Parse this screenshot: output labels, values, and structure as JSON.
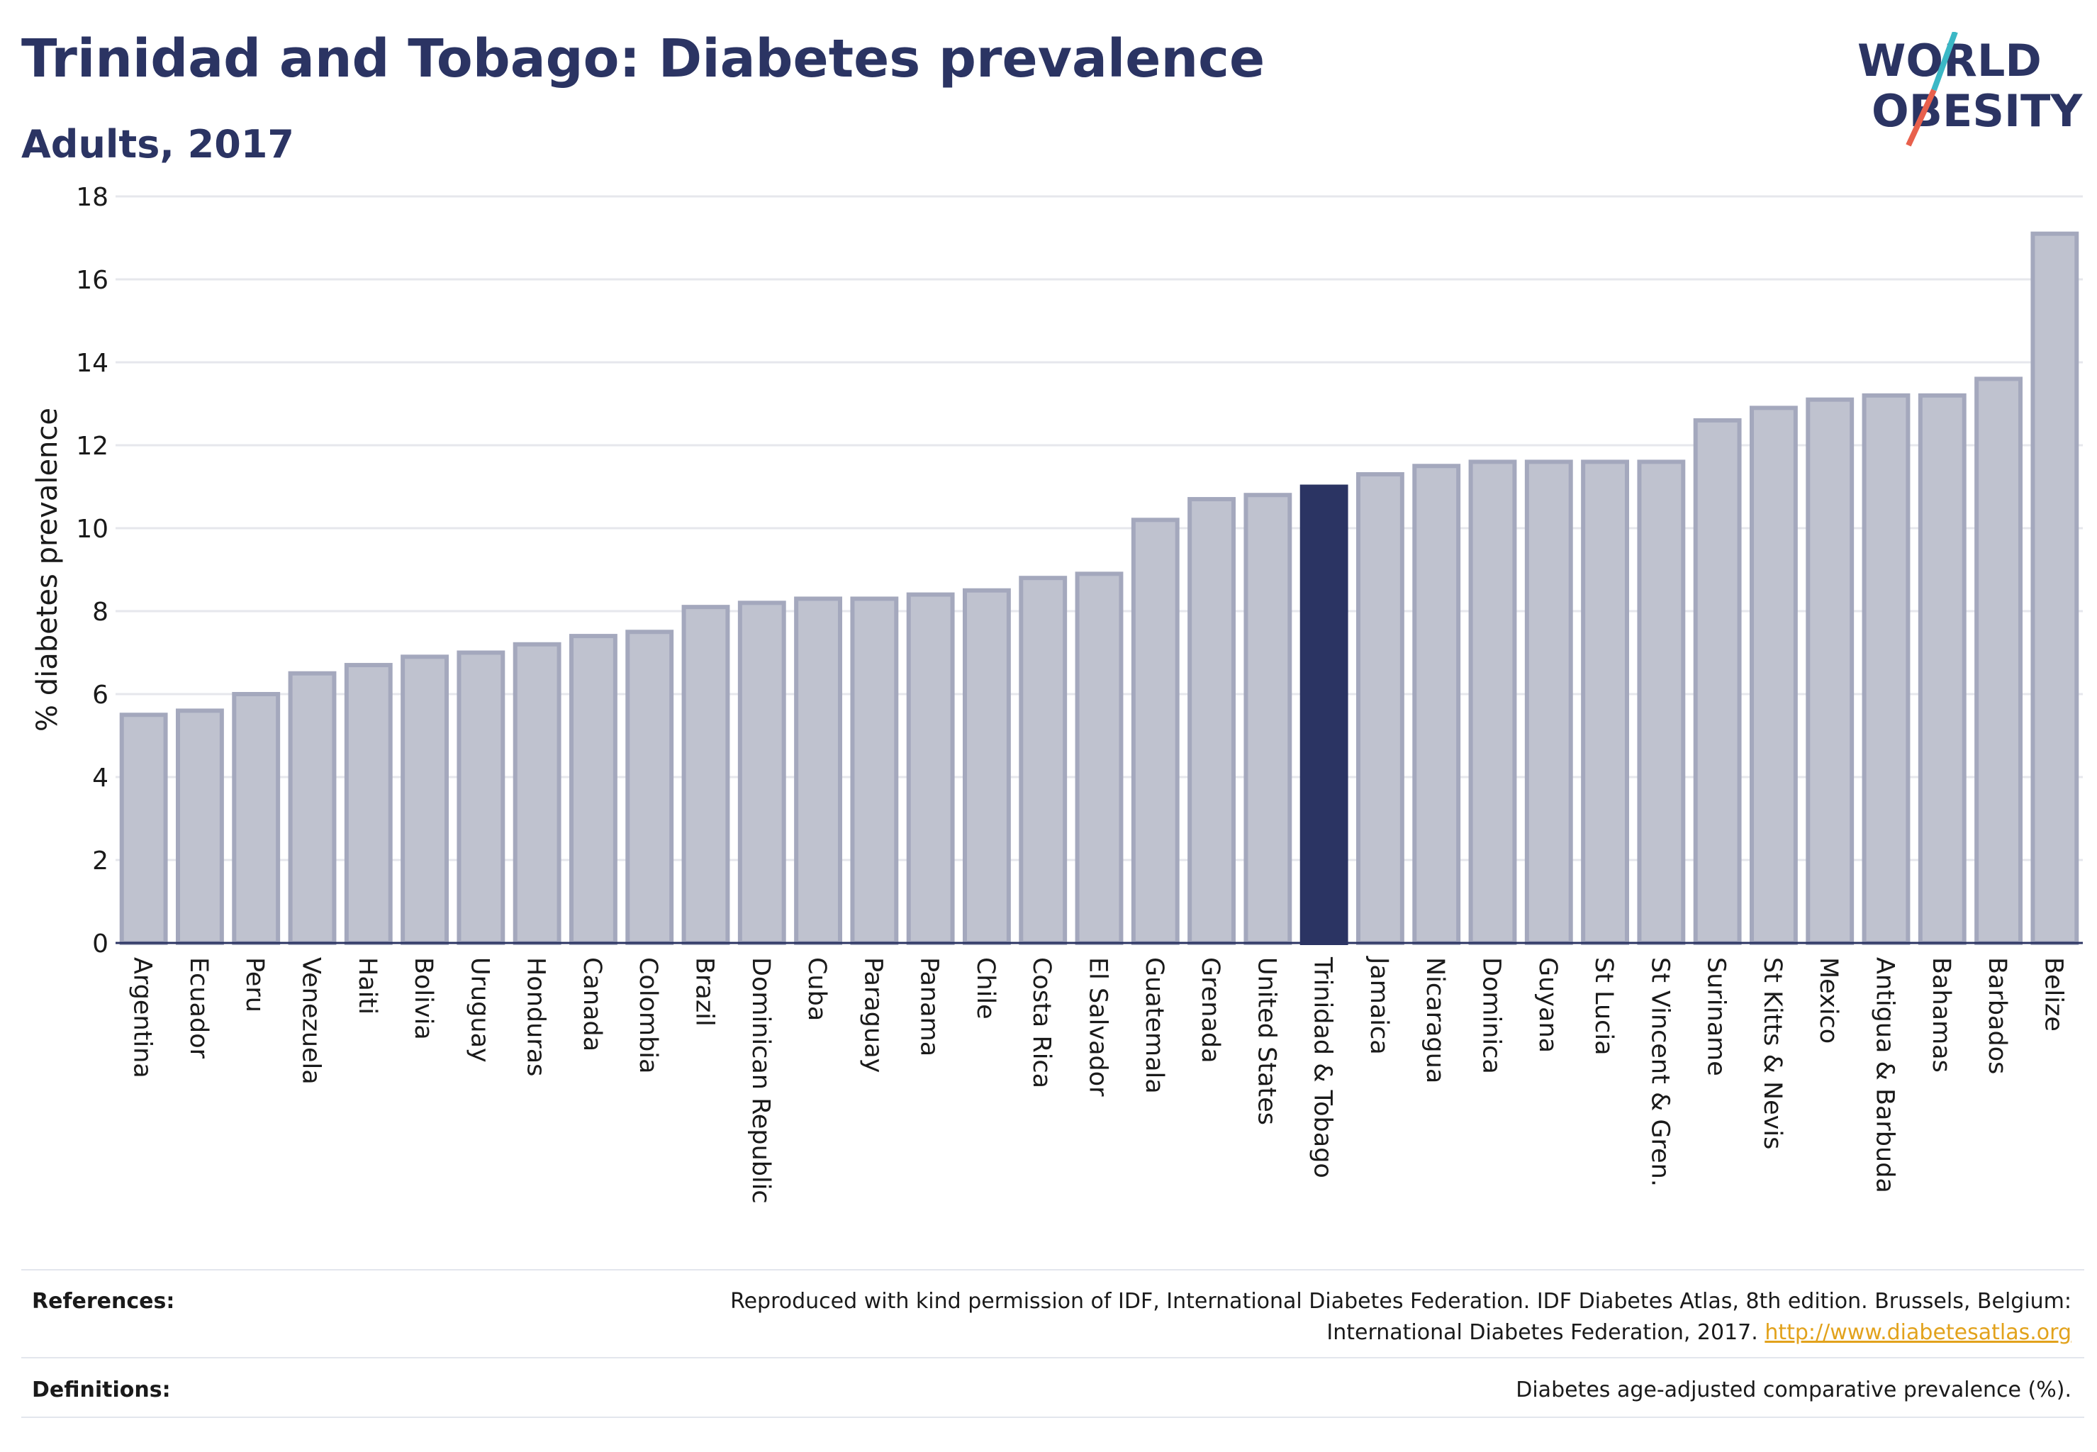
{
  "header": {
    "title": "Trinidad and Tobago: Diabetes prevalence",
    "subtitle": "Adults, 2017"
  },
  "logo": {
    "line1": "WORLD",
    "line2": "OBESITY",
    "slash_colors": [
      "#3bb8c6",
      "#e8604c"
    ]
  },
  "colors": {
    "bar_default": "#bfc2cf",
    "bar_border": "#a4a8bd",
    "bar_highlight": "#2b3463",
    "text": "#2b3463",
    "link": "#e2a21c"
  },
  "chart_data": {
    "type": "bar",
    "ylabel": "% diabetes prevalence",
    "ylim": [
      0,
      18
    ],
    "yticks": [
      0,
      2,
      4,
      6,
      8,
      10,
      12,
      14,
      16,
      18
    ],
    "grid": true,
    "highlight": "Trinidad & Tobago",
    "categories": [
      "Argentina",
      "Ecuador",
      "Peru",
      "Venezuela",
      "Haiti",
      "Bolivia",
      "Uruguay",
      "Honduras",
      "Canada",
      "Colombia",
      "Brazil",
      "Dominican Republic",
      "Cuba",
      "Paraguay",
      "Panama",
      "Chile",
      "Costa Rica",
      "El Salvador",
      "Guatemala",
      "Grenada",
      "United States",
      "Trinidad & Tobago",
      "Jamaica",
      "Nicaragua",
      "Dominica",
      "Guyana",
      "St Lucia",
      "St Vincent & Gren.",
      "Suriname",
      "St Kitts & Nevis",
      "Mexico",
      "Antigua & Barbuda",
      "Bahamas",
      "Barbados",
      "Belize"
    ],
    "values": [
      5.5,
      5.6,
      6.0,
      6.5,
      6.7,
      6.9,
      7.0,
      7.2,
      7.4,
      7.5,
      8.1,
      8.2,
      8.3,
      8.3,
      8.4,
      8.5,
      8.8,
      8.9,
      10.2,
      10.7,
      10.8,
      11.0,
      11.3,
      11.5,
      11.6,
      11.6,
      11.6,
      11.6,
      12.6,
      12.9,
      13.1,
      13.2,
      13.2,
      13.6,
      17.1
    ]
  },
  "footer": {
    "references_label": "References:",
    "references_text_1": "Reproduced with kind permission of IDF, International Diabetes Federation. IDF Diabetes Atlas, 8th edition. Brussels, Belgium:",
    "references_text_2": "International Diabetes Federation, 2017.",
    "references_link": "http://www.diabetesatlas.org",
    "definitions_label": "Definitions:",
    "definitions_text": "Diabetes age-adjusted comparative prevalence (%)."
  }
}
